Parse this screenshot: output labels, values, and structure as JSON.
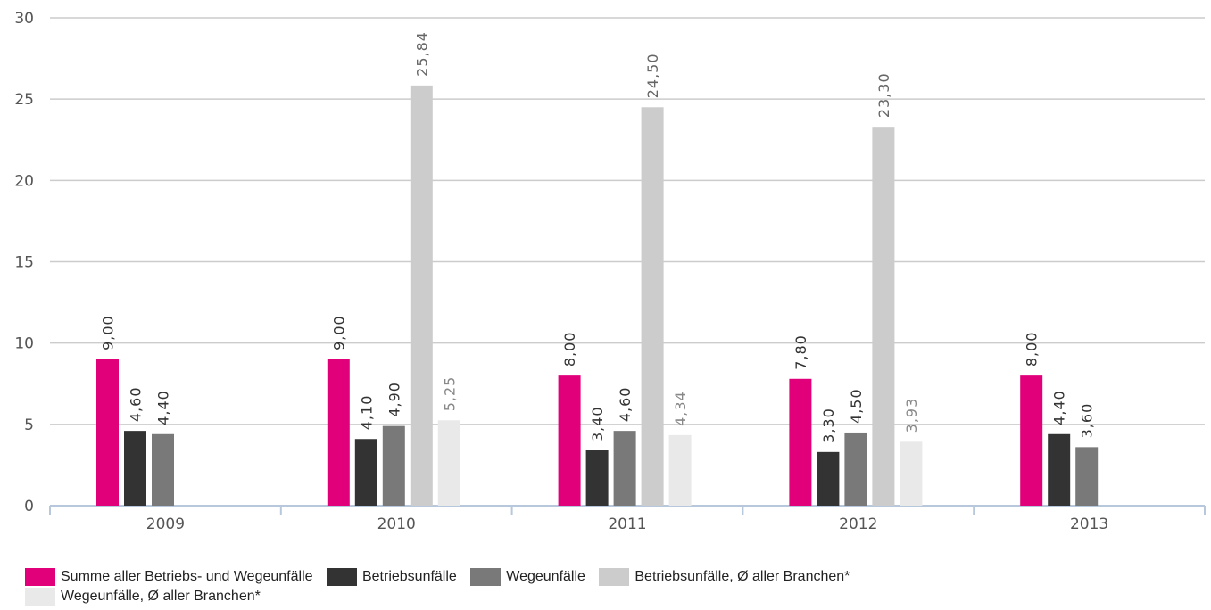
{
  "chart_data": {
    "type": "bar",
    "categories": [
      "2009",
      "2010",
      "2011",
      "2012",
      "2013"
    ],
    "ylim": [
      0,
      30
    ],
    "yticks": [
      "0",
      "5",
      "10",
      "15",
      "20",
      "25",
      "30"
    ],
    "ytick_values": [
      0,
      5,
      10,
      15,
      20,
      25,
      30
    ],
    "grid": true,
    "legend_position": "bottom",
    "series": [
      {
        "name": "Summe aller Betriebs- und Wegeunfälle",
        "color": "#e2007a",
        "values": [
          9.0,
          9.0,
          8.0,
          7.8,
          8.0
        ],
        "labels": [
          "9,00",
          "9,00",
          "8,00",
          "7,80",
          "8,00"
        ]
      },
      {
        "name": "Betriebsunfälle",
        "color": "#333333",
        "values": [
          4.6,
          4.1,
          3.4,
          3.3,
          4.4
        ],
        "labels": [
          "4,60",
          "4,10",
          "3,40",
          "3,30",
          "4,40"
        ]
      },
      {
        "name": "Wegeunfälle",
        "color": "#797979",
        "values": [
          4.4,
          4.9,
          4.6,
          4.5,
          3.6
        ],
        "labels": [
          "4,40",
          "4,90",
          "4,60",
          "4,50",
          "3,60"
        ]
      },
      {
        "name": "Betriebsunfälle, Ø aller Branchen*",
        "color": "#cccccc",
        "values": [
          null,
          25.84,
          24.5,
          23.3,
          null
        ],
        "labels": [
          "",
          "25,84",
          "24,50",
          "23,30",
          ""
        ]
      },
      {
        "name": "Wegeunfälle, Ø aller Branchen*",
        "color": "#e9e9e9",
        "values": [
          null,
          5.25,
          4.34,
          3.93,
          null
        ],
        "labels": [
          "",
          "5,25",
          "4,34",
          "3,93",
          ""
        ]
      }
    ]
  }
}
